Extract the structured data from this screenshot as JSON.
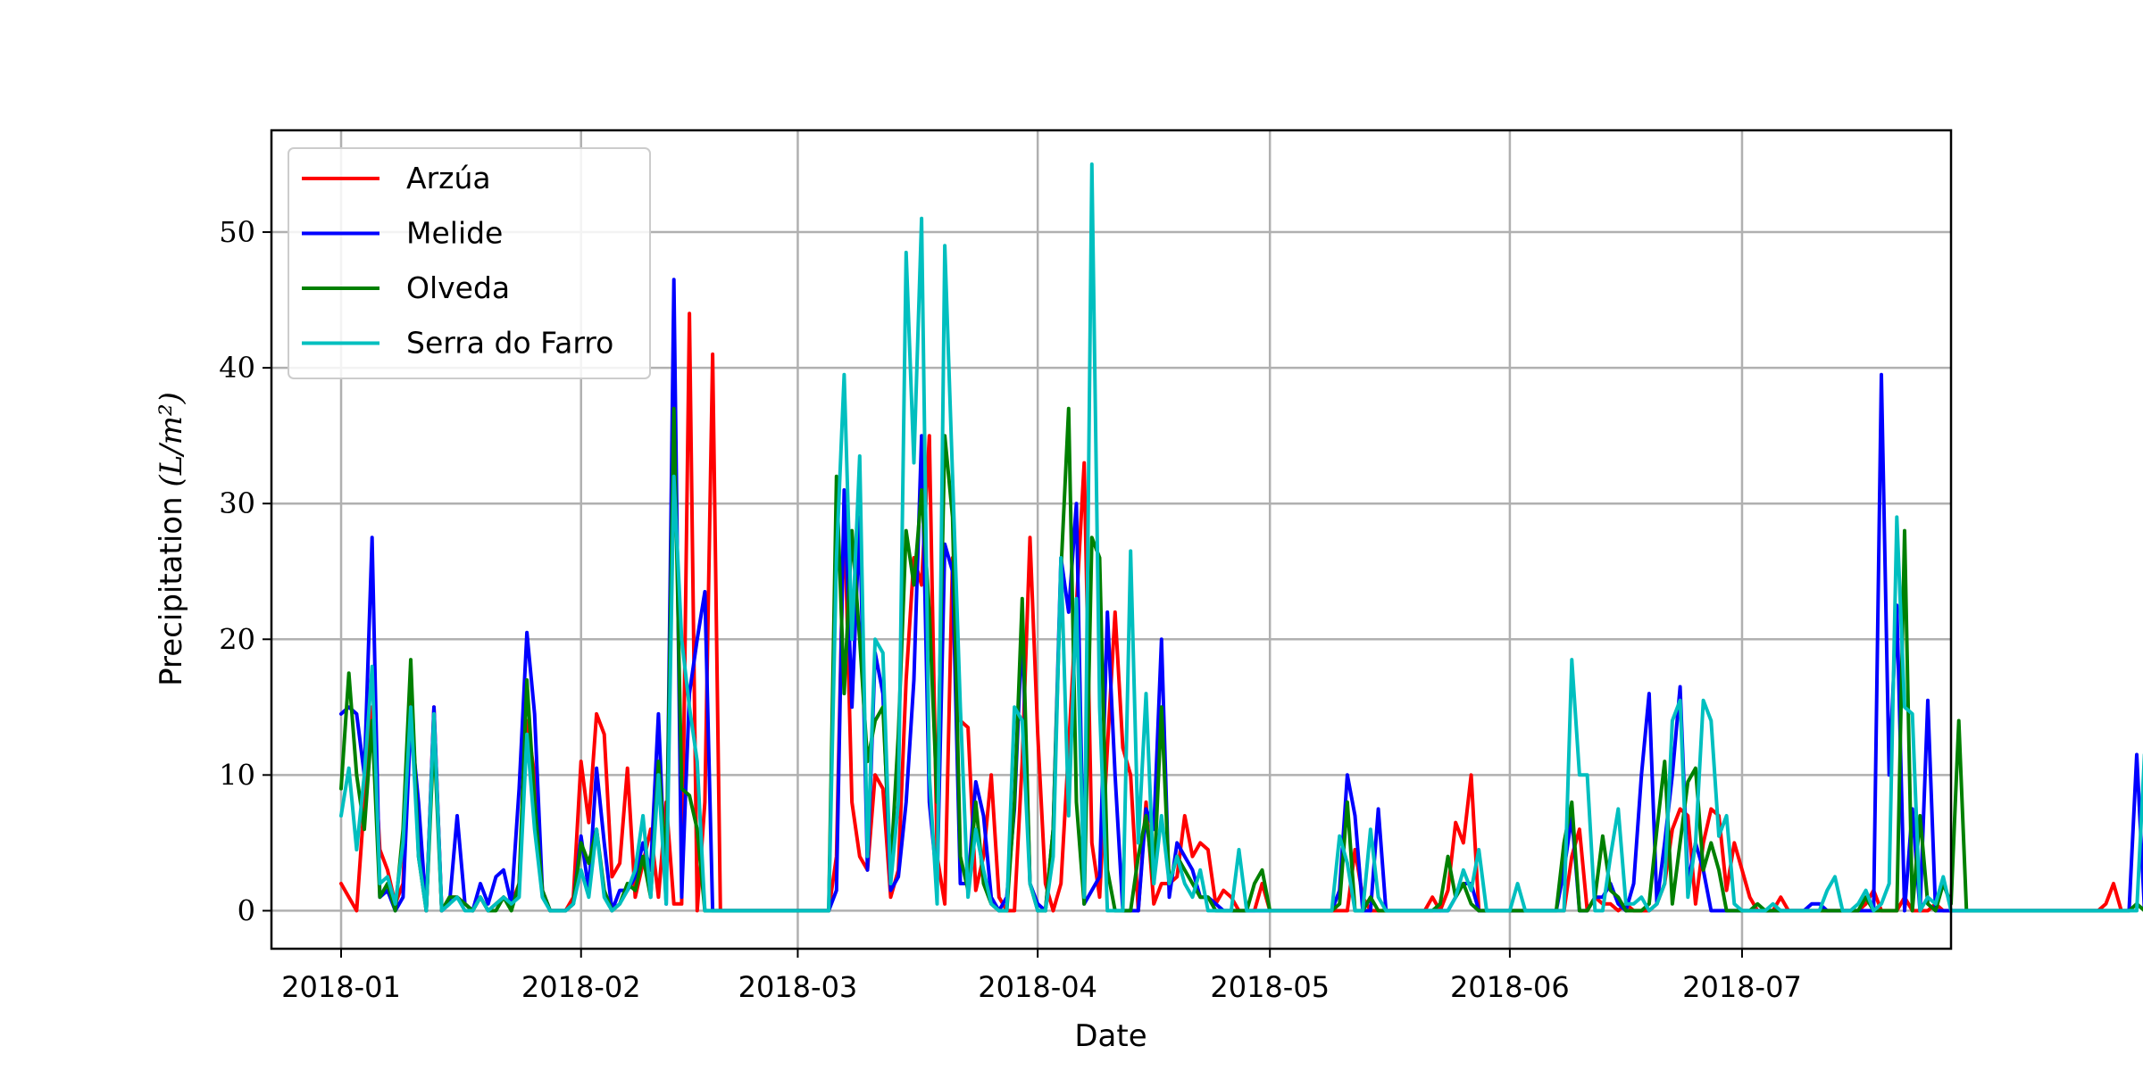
{
  "chart_data": {
    "type": "line",
    "title": "",
    "xlabel": "Date",
    "ylabel_text": "Precipitation ",
    "ylabel_unit": "(L/m²)",
    "x_start": "2018-01-01",
    "x_end": "2018-07-16",
    "xlim": [
      "2017-12-23",
      "2018-07-28"
    ],
    "ylim": [
      -2.8,
      57.5
    ],
    "y_ticks": [
      0,
      10,
      20,
      30,
      40,
      50
    ],
    "x_ticks": [
      {
        "date": "2018-01-01",
        "label": "2018-01"
      },
      {
        "date": "2018-02-01",
        "label": "2018-02"
      },
      {
        "date": "2018-03-01",
        "label": "2018-03"
      },
      {
        "date": "2018-04-01",
        "label": "2018-04"
      },
      {
        "date": "2018-05-01",
        "label": "2018-05"
      },
      {
        "date": "2018-06-01",
        "label": "2018-06"
      },
      {
        "date": "2018-07-01",
        "label": "2018-07"
      }
    ],
    "grid": true,
    "legend_position": "top-left",
    "series": [
      {
        "name": "Arzúa",
        "color": "#ff0000",
        "values": [
          2.0,
          1.0,
          0.0,
          8.0,
          15.0,
          4.5,
          3.0,
          0.5,
          2.0,
          17.0,
          5.0,
          0.0,
          15.0,
          0.0,
          1.0,
          1.0,
          0.5,
          0.0,
          1.0,
          0.0,
          0.5,
          1.0,
          0.5,
          2.0,
          14.0,
          10.0,
          1.5,
          0.0,
          0.0,
          0.0,
          1.0,
          11.0,
          6.5,
          14.5,
          13.0,
          2.5,
          3.5,
          10.5,
          1.0,
          3.5,
          6.0,
          1.0,
          8.0,
          0.5,
          0.5,
          44.0,
          0.0,
          8.0,
          41.0,
          0.0,
          0.0,
          0.0,
          0.0,
          0.0,
          0.0,
          0.0,
          0.0,
          0.0,
          0.0,
          0.0,
          0.0,
          0.0,
          0.0,
          0.0,
          4.0,
          30.0,
          8.0,
          4.0,
          3.0,
          10.0,
          9.0,
          1.0,
          3.0,
          17.0,
          26.0,
          24.0,
          35.0,
          4.0,
          0.5,
          26.0,
          14.0,
          13.5,
          1.5,
          4.0,
          10.0,
          1.0,
          0.0,
          0.0,
          11.0,
          27.5,
          13.0,
          2.0,
          0.0,
          2.0,
          12.0,
          22.5,
          33.0,
          5.0,
          1.0,
          12.0,
          22.0,
          12.0,
          10.0,
          0.0,
          8.0,
          0.5,
          2.0,
          2.0,
          2.5,
          7.0,
          4.0,
          5.0,
          4.5,
          0.5,
          1.5,
          1.0,
          0.0,
          0.0,
          0.0,
          2.0,
          0.0,
          0.0,
          0.0,
          0.0,
          0.0,
          0.0,
          0.0,
          0.0,
          0.0,
          0.0,
          0.0,
          4.5,
          1.0,
          0.0,
          0.0,
          0.0,
          0.0,
          0.0,
          0.0,
          0.0,
          0.0,
          1.0,
          0.0,
          1.5,
          6.5,
          5.0,
          10.0,
          0.0,
          0.0,
          0.0,
          0.0,
          0.0,
          0.0,
          0.0,
          0.0,
          0.0,
          0.0,
          0.0,
          0.0,
          4.0,
          6.0,
          0.0,
          1.0,
          0.5,
          0.5,
          0.0,
          0.5,
          0.0,
          0.0,
          0.0,
          0.5,
          2.0,
          6.0,
          7.5,
          7.0,
          0.5,
          5.0,
          7.5,
          7.0,
          1.5,
          5.0,
          3.0,
          1.0,
          0.0,
          0.0,
          0.0,
          1.0,
          0.0,
          0.0,
          0.0,
          0.0,
          0.0,
          0.0,
          0.0,
          0.0,
          0.0,
          0.0,
          0.5,
          1.5,
          0.0,
          0.0,
          0.0,
          1.0,
          0.0,
          0.0,
          0.0,
          0.5,
          0.0,
          0.0,
          0.0,
          0.0,
          0.0,
          0.0,
          0.0,
          0.0,
          0.0,
          0.0,
          0.0,
          0.0,
          0.0,
          0.0,
          0.0,
          0.0,
          0.0,
          0.0,
          0.0,
          0.0,
          0.0,
          0.5,
          2.0,
          0.0
        ]
      },
      {
        "name": "Melide",
        "color": "#0000ff",
        "values": [
          14.5,
          15.0,
          14.5,
          10.0,
          27.5,
          1.0,
          1.5,
          0.0,
          1.0,
          14.0,
          8.0,
          0.0,
          15.0,
          0.0,
          0.5,
          7.0,
          0.5,
          0.0,
          2.0,
          0.5,
          2.5,
          3.0,
          0.5,
          9.0,
          20.5,
          14.5,
          1.5,
          0.0,
          0.0,
          0.0,
          0.5,
          5.5,
          1.5,
          10.5,
          5.0,
          0.0,
          1.5,
          1.5,
          2.5,
          5.0,
          3.0,
          14.5,
          0.5,
          46.5,
          1.0,
          16.0,
          20.0,
          23.5,
          0.0,
          0.0,
          0.0,
          0.0,
          0.0,
          0.0,
          0.0,
          0.0,
          0.0,
          0.0,
          0.0,
          0.0,
          0.0,
          0.0,
          0.0,
          0.0,
          1.5,
          31.0,
          15.0,
          29.0,
          3.0,
          19.0,
          16.0,
          1.5,
          2.5,
          8.0,
          17.0,
          35.0,
          8.0,
          2.0,
          27.0,
          25.0,
          2.0,
          2.0,
          9.5,
          7.0,
          1.0,
          0.0,
          1.0,
          7.5,
          21.0,
          2.0,
          0.5,
          0.0,
          6.0,
          26.0,
          22.0,
          30.0,
          0.5,
          1.5,
          2.5,
          22.0,
          10.0,
          0.0,
          0.0,
          0.0,
          7.5,
          6.0,
          20.0,
          1.0,
          5.0,
          4.0,
          3.0,
          1.0,
          1.0,
          0.5,
          0.0,
          0.0,
          0.0,
          0.0,
          0.0,
          0.0,
          0.0,
          0.0,
          0.0,
          0.0,
          0.0,
          0.0,
          0.0,
          0.0,
          0.0,
          1.5,
          10.0,
          7.0,
          0.0,
          0.0,
          7.5,
          0.0,
          0.0,
          0.0,
          0.0,
          0.0,
          0.0,
          0.0,
          0.0,
          0.0,
          1.0,
          2.0,
          2.0,
          0.0,
          0.0,
          0.0,
          0.0,
          0.0,
          0.0,
          0.0,
          0.0,
          0.0,
          0.0,
          0.0,
          3.0,
          7.0,
          0.0,
          0.0,
          1.0,
          1.0,
          2.0,
          0.5,
          0.0,
          2.0,
          10.0,
          16.0,
          0.5,
          5.0,
          10.0,
          16.5,
          2.0,
          5.0,
          3.0,
          0.0,
          0.0,
          0.0,
          0.0,
          0.0,
          0.0,
          0.0,
          0.0,
          0.0,
          0.0,
          0.0,
          0.0,
          0.0,
          0.5,
          0.5,
          0.0,
          0.0,
          0.0,
          0.0,
          0.0,
          0.0,
          0.0,
          39.5,
          10.0,
          22.5,
          0.0,
          7.5,
          0.0,
          15.5,
          0.0,
          0.0,
          0.0,
          0.0,
          0.0,
          0.0,
          0.0,
          0.0,
          0.0,
          0.0,
          0.0,
          0.0,
          0.0,
          0.0,
          0.0,
          0.0,
          0.0,
          0.0,
          0.0,
          0.0,
          0.0,
          0.0,
          0.0,
          0.0,
          0.0,
          0.0,
          11.5,
          0.0,
          0.0
        ]
      },
      {
        "name": "Olveda",
        "color": "#008000",
        "values": [
          9.0,
          17.5,
          10.0,
          6.0,
          14.0,
          1.0,
          2.0,
          0.0,
          6.0,
          18.5,
          4.0,
          0.0,
          13.0,
          0.0,
          1.0,
          1.0,
          0.5,
          0.0,
          1.0,
          0.0,
          0.0,
          1.0,
          0.0,
          2.0,
          17.0,
          8.0,
          1.5,
          0.0,
          0.0,
          0.0,
          0.5,
          5.0,
          3.5,
          6.0,
          1.5,
          0.0,
          0.5,
          2.0,
          1.5,
          4.0,
          1.0,
          11.0,
          3.0,
          37.0,
          9.0,
          8.5,
          6.0,
          0.0,
          0.0,
          0.0,
          0.0,
          0.0,
          0.0,
          0.0,
          0.0,
          0.0,
          0.0,
          0.0,
          0.0,
          0.0,
          0.0,
          0.0,
          0.0,
          0.0,
          32.0,
          16.0,
          28.0,
          20.0,
          11.0,
          14.0,
          15.0,
          3.0,
          13.0,
          28.0,
          24.0,
          31.0,
          22.0,
          8.0,
          35.0,
          29.0,
          4.0,
          1.5,
          8.0,
          2.0,
          0.5,
          0.0,
          0.0,
          8.0,
          23.0,
          2.0,
          0.0,
          0.0,
          6.0,
          25.0,
          37.0,
          8.0,
          0.5,
          27.5,
          26.0,
          3.0,
          0.0,
          0.0,
          0.0,
          4.0,
          7.0,
          2.0,
          15.0,
          2.0,
          4.0,
          3.0,
          2.0,
          1.0,
          1.0,
          0.0,
          0.0,
          0.0,
          0.0,
          0.0,
          2.0,
          3.0,
          0.0,
          0.0,
          0.0,
          0.0,
          0.0,
          0.0,
          0.0,
          0.0,
          0.0,
          0.5,
          8.0,
          0.0,
          0.0,
          1.0,
          0.0,
          0.0,
          0.0,
          0.0,
          0.0,
          0.0,
          0.0,
          0.0,
          0.5,
          4.0,
          1.0,
          2.0,
          0.5,
          0.0,
          0.0,
          0.0,
          0.0,
          0.0,
          0.0,
          0.0,
          0.0,
          0.0,
          0.0,
          0.0,
          5.0,
          8.0,
          0.0,
          0.0,
          1.0,
          5.5,
          1.5,
          1.0,
          0.0,
          0.0,
          0.0,
          0.5,
          6.0,
          11.0,
          0.5,
          5.0,
          9.5,
          10.5,
          3.0,
          5.0,
          3.0,
          0.0,
          0.0,
          0.0,
          0.0,
          0.5,
          0.0,
          0.0,
          0.0,
          0.0,
          0.0,
          0.0,
          0.0,
          0.0,
          0.0,
          0.0,
          0.0,
          0.0,
          0.0,
          1.0,
          0.0,
          0.0,
          0.0,
          0.0,
          28.0,
          0.0,
          7.0,
          0.5,
          0.0,
          2.0,
          0.5,
          14.0,
          0.0,
          0.0,
          0.0,
          0.0,
          0.0,
          0.0,
          0.0,
          0.0,
          0.0,
          0.0,
          0.0,
          0.0,
          0.0,
          0.0,
          0.0,
          0.0,
          0.0,
          0.0,
          0.0,
          0.0,
          0.0,
          0.0,
          0.5,
          0.0,
          0.0,
          0.0
        ]
      },
      {
        "name": "Serra do Farro",
        "color": "#00bfbf",
        "values": [
          7.0,
          10.5,
          4.5,
          10.0,
          18.0,
          2.0,
          2.5,
          0.5,
          5.0,
          15.0,
          4.0,
          0.0,
          14.5,
          0.0,
          0.5,
          1.0,
          0.0,
          0.0,
          1.0,
          0.0,
          0.5,
          1.0,
          0.5,
          1.0,
          13.0,
          6.0,
          1.0,
          0.0,
          0.0,
          0.0,
          0.5,
          3.0,
          1.0,
          6.0,
          1.0,
          0.0,
          0.5,
          1.5,
          3.0,
          7.0,
          1.0,
          10.0,
          0.5,
          32.0,
          20.0,
          15.0,
          11.0,
          0.0,
          0.0,
          0.0,
          0.0,
          0.0,
          0.0,
          0.0,
          0.0,
          0.0,
          0.0,
          0.0,
          0.0,
          0.0,
          0.0,
          0.0,
          0.0,
          0.0,
          26.0,
          39.5,
          20.0,
          33.5,
          4.0,
          20.0,
          19.0,
          2.0,
          8.0,
          48.5,
          33.0,
          51.0,
          10.0,
          0.5,
          49.0,
          32.0,
          15.0,
          1.0,
          6.0,
          3.0,
          0.5,
          0.0,
          0.0,
          15.0,
          14.0,
          2.0,
          0.0,
          0.0,
          4.0,
          26.0,
          7.0,
          23.0,
          1.0,
          55.0,
          15.0,
          0.0,
          0.0,
          0.0,
          26.5,
          5.0,
          16.0,
          2.0,
          7.0,
          2.0,
          4.0,
          2.0,
          1.0,
          3.0,
          0.0,
          0.0,
          0.0,
          0.0,
          4.5,
          0.0,
          0.0,
          0.0,
          0.0,
          0.0,
          0.0,
          0.0,
          0.0,
          0.0,
          0.0,
          0.0,
          0.0,
          5.5,
          3.5,
          0.0,
          0.0,
          6.0,
          1.0,
          0.0,
          0.0,
          0.0,
          0.0,
          0.0,
          0.0,
          0.0,
          0.0,
          0.0,
          1.0,
          3.0,
          1.5,
          4.5,
          0.0,
          0.0,
          0.0,
          0.0,
          2.0,
          0.0,
          0.0,
          0.0,
          0.0,
          0.0,
          0.0,
          18.5,
          10.0,
          10.0,
          0.0,
          0.0,
          4.0,
          7.5,
          0.5,
          0.5,
          1.0,
          0.0,
          0.5,
          2.0,
          14.0,
          15.5,
          1.0,
          5.0,
          15.5,
          14.0,
          5.5,
          7.0,
          0.5,
          0.0,
          0.0,
          0.0,
          0.0,
          0.5,
          0.0,
          0.0,
          0.0,
          0.0,
          0.0,
          0.0,
          1.5,
          2.5,
          0.0,
          0.0,
          0.5,
          1.5,
          0.0,
          0.5,
          2.0,
          29.0,
          15.0,
          14.5,
          0.0,
          1.0,
          0.5,
          2.5,
          0.0,
          0.0,
          0.0,
          0.0,
          0.0,
          0.0,
          0.0,
          0.0,
          0.0,
          0.0,
          0.0,
          0.0,
          0.0,
          0.0,
          0.0,
          0.0,
          0.0,
          0.0,
          0.0,
          0.0,
          0.0,
          0.0,
          0.0,
          0.0,
          0.0,
          11.5,
          0.0,
          0.0,
          0.0
        ]
      }
    ]
  }
}
